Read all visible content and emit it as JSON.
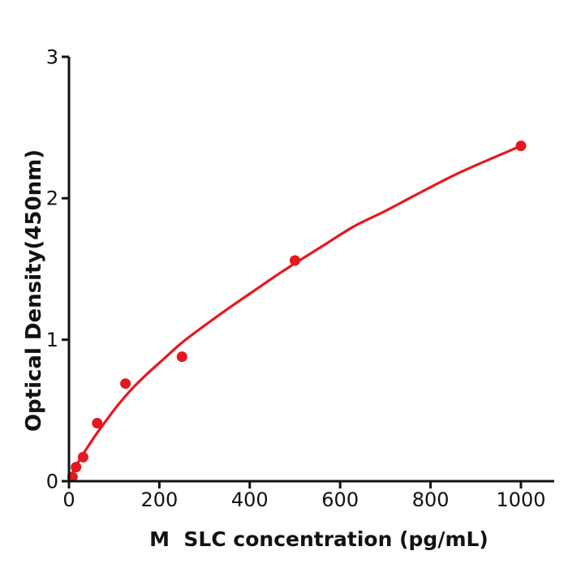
{
  "figure": {
    "background": "#ffffff"
  },
  "chart_data": {
    "type": "scatter",
    "title": "",
    "xlabel": "M  SLC concentration (pg/mL)",
    "ylabel": "Optical Density(450nm)",
    "xlim": [
      0,
      1073
    ],
    "ylim": [
      0,
      3
    ],
    "x_ticks": [
      0,
      200,
      400,
      600,
      800,
      1000
    ],
    "y_ticks": [
      0,
      1,
      2,
      3
    ],
    "grid": false,
    "legend": "none",
    "axis_color": "#121212",
    "tick_label_color": "#121212",
    "series": [
      {
        "name": "standard-points",
        "type": "scatter",
        "color": "#e7171d",
        "marker": "circle",
        "marker_radius": 6.5,
        "points": [
          {
            "x": 7.8,
            "y": 0.03
          },
          {
            "x": 15.6,
            "y": 0.1
          },
          {
            "x": 31.2,
            "y": 0.17
          },
          {
            "x": 62.5,
            "y": 0.41
          },
          {
            "x": 125,
            "y": 0.69
          },
          {
            "x": 250,
            "y": 0.88
          },
          {
            "x": 500,
            "y": 1.56
          },
          {
            "x": 1000,
            "y": 2.37
          }
        ]
      },
      {
        "name": "fitted-curve",
        "type": "line",
        "color": "#e7171d",
        "width": 3.2,
        "points": [
          {
            "x": 0,
            "y": 0
          },
          {
            "x": 6,
            "y": 0.05
          },
          {
            "x": 12,
            "y": 0.085
          },
          {
            "x": 20,
            "y": 0.13
          },
          {
            "x": 31,
            "y": 0.19
          },
          {
            "x": 45,
            "y": 0.26
          },
          {
            "x": 63,
            "y": 0.345
          },
          {
            "x": 85,
            "y": 0.44
          },
          {
            "x": 110,
            "y": 0.545
          },
          {
            "x": 140,
            "y": 0.655
          },
          {
            "x": 170,
            "y": 0.75
          },
          {
            "x": 210,
            "y": 0.865
          },
          {
            "x": 250,
            "y": 0.98
          },
          {
            "x": 300,
            "y": 1.1
          },
          {
            "x": 350,
            "y": 1.215
          },
          {
            "x": 400,
            "y": 1.325
          },
          {
            "x": 450,
            "y": 1.435
          },
          {
            "x": 500,
            "y": 1.54
          },
          {
            "x": 560,
            "y": 1.66
          },
          {
            "x": 630,
            "y": 1.8
          },
          {
            "x": 700,
            "y": 1.91
          },
          {
            "x": 780,
            "y": 2.045
          },
          {
            "x": 870,
            "y": 2.19
          },
          {
            "x": 1000,
            "y": 2.37
          }
        ]
      }
    ]
  }
}
